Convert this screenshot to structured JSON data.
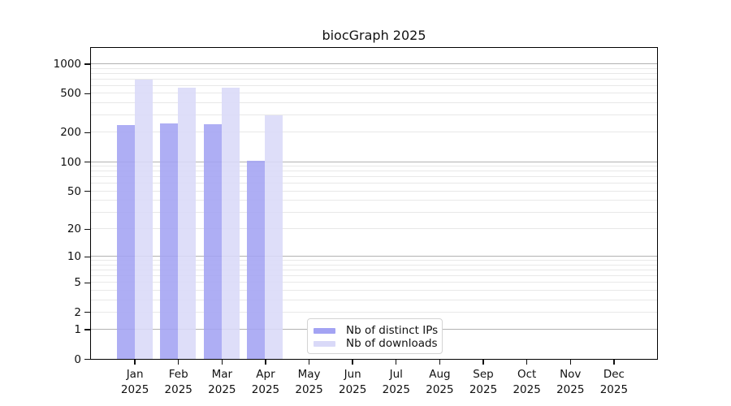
{
  "title": "biocGraph 2025",
  "legend": {
    "items": [
      {
        "label": "Nb of distinct IPs",
        "color": "#a3a3f3"
      },
      {
        "label": "Nb of downloads",
        "color": "#d9d9f8"
      }
    ]
  },
  "chart_data": {
    "type": "bar",
    "title": "biocGraph 2025",
    "categories": [
      "Jan",
      "Feb",
      "Mar",
      "Apr",
      "May",
      "Jun",
      "Jul",
      "Aug",
      "Sep",
      "Oct",
      "Nov",
      "Dec"
    ],
    "category_year": "2025",
    "series": [
      {
        "name": "Nb of distinct IPs",
        "color": "#a3a3f3",
        "values": [
          237,
          247,
          240,
          103,
          null,
          null,
          null,
          null,
          null,
          null,
          null,
          null
        ]
      },
      {
        "name": "Nb of downloads",
        "color": "#d9d9f8",
        "values": [
          684,
          567,
          567,
          301,
          null,
          null,
          null,
          null,
          null,
          null,
          null,
          null
        ]
      }
    ],
    "y_scale": "log10(value+1)",
    "y_ticks": [
      0,
      1,
      2,
      5,
      10,
      20,
      50,
      100,
      200,
      500,
      1000
    ],
    "y_tick_labels": [
      "0",
      "1",
      "2",
      "5",
      "10",
      "20",
      "50",
      "100",
      "200",
      "500",
      "1000"
    ],
    "ylim": [
      0,
      1450
    ],
    "grid": true,
    "legend_position": "lower-center",
    "colors": {
      "major_grid": "#b2b2b2",
      "minor_grid": "#e8e8e8",
      "axis": "#000000",
      "text": "#111111"
    }
  }
}
